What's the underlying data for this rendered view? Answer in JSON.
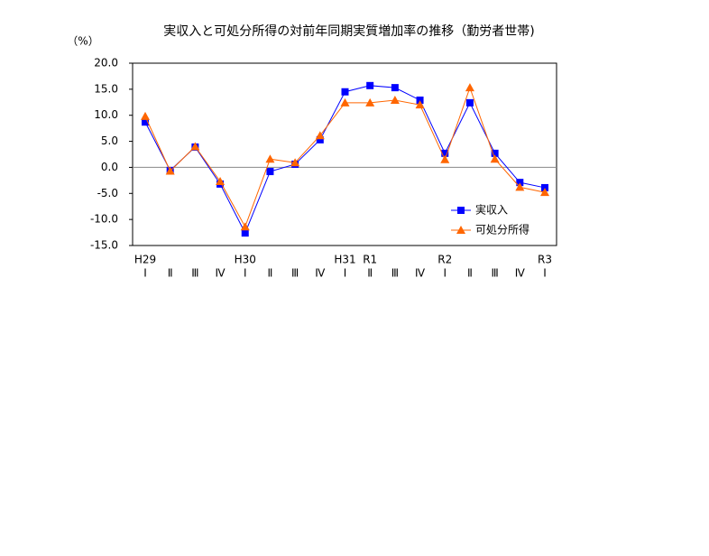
{
  "chart_data": {
    "type": "line",
    "title": "実収入と可処分所得の対前年同期実質増加率の推移（勤労者世帯)",
    "y_unit": "（%）",
    "categories": [
      "Ⅰ",
      "Ⅱ",
      "Ⅲ",
      "Ⅳ",
      "Ⅰ",
      "Ⅱ",
      "Ⅲ",
      "Ⅳ",
      "Ⅰ",
      "Ⅱ",
      "Ⅲ",
      "Ⅳ",
      "Ⅰ",
      "Ⅱ",
      "Ⅲ",
      "Ⅳ",
      "Ⅰ"
    ],
    "era_labels": [
      "H29",
      null,
      null,
      null,
      "H30",
      null,
      null,
      null,
      "H31",
      "R1",
      null,
      null,
      "R2",
      null,
      null,
      null,
      "R3"
    ],
    "series": [
      {
        "name": "実収入",
        "color": "#0000ff",
        "marker": "square",
        "values": [
          8.7,
          -0.6,
          3.9,
          -3.2,
          -12.6,
          -0.8,
          0.6,
          5.3,
          14.5,
          15.7,
          15.3,
          12.9,
          2.7,
          12.4,
          2.7,
          -2.9,
          -3.9
        ]
      },
      {
        "name": "可処分所得",
        "color": "#ff6600",
        "marker": "triangle",
        "values": [
          9.8,
          -0.7,
          4.0,
          -2.7,
          -11.4,
          1.6,
          0.9,
          6.1,
          12.4,
          12.4,
          12.9,
          12.0,
          1.5,
          15.3,
          1.6,
          -3.8,
          -4.8
        ]
      }
    ],
    "ylim": [
      -15,
      20
    ],
    "yticks": [
      {
        "value": -15,
        "label": "-15.0"
      },
      {
        "value": -10,
        "label": "-10.0"
      },
      {
        "value": -5,
        "label": "-5.0"
      },
      {
        "value": 0,
        "label": "0.0"
      },
      {
        "value": 5,
        "label": "5.0"
      },
      {
        "value": 10,
        "label": "10.0"
      },
      {
        "value": 15,
        "label": "15.0"
      },
      {
        "value": 20,
        "label": "20.0"
      }
    ],
    "zero_line": true,
    "legend": "lower right"
  }
}
